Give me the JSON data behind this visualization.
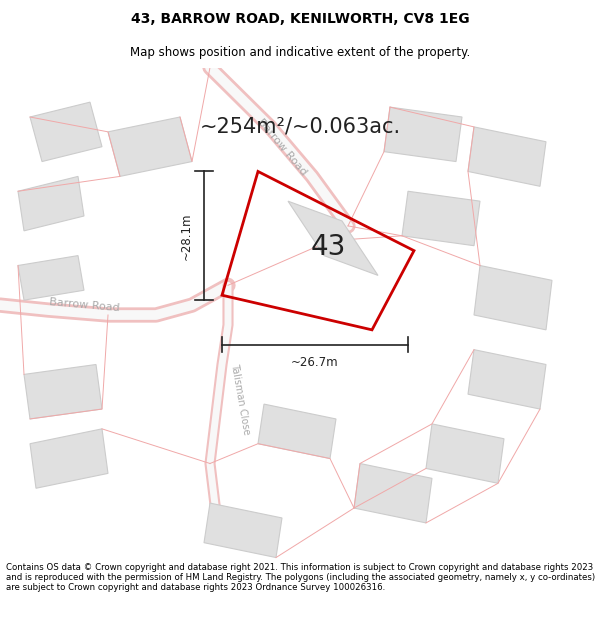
{
  "title": "43, BARROW ROAD, KENILWORTH, CV8 1EG",
  "subtitle": "Map shows position and indicative extent of the property.",
  "area_text": "~254m²/~0.063ac.",
  "property_number": "43",
  "dim_width": "~26.7m",
  "dim_height": "~28.1m",
  "footer": "Contains OS data © Crown copyright and database right 2021. This information is subject to Crown copyright and database rights 2023 and is reproduced with the permission of HM Land Registry. The polygons (including the associated geometry, namely x, y co-ordinates) are subject to Crown copyright and database rights 2023 Ordnance Survey 100026316.",
  "bg_color": "#ffffff",
  "map_bg": "#ffffff",
  "road_color": "#f5f5f5",
  "road_border_color": "#f0c8c8",
  "property_fill": "none",
  "property_edge": "#cc0000",
  "building_fill": "#e0e0e0",
  "building_edge": "#cccccc",
  "road_label_color": "#aaaaaa",
  "dim_line_color": "#222222",
  "title_fontsize": 10,
  "subtitle_fontsize": 8.5,
  "area_fontsize": 15,
  "number_fontsize": 20,
  "footer_fontsize": 6.2,
  "dim_label_fontsize": 8.5,
  "road_label_fontsize": 8
}
